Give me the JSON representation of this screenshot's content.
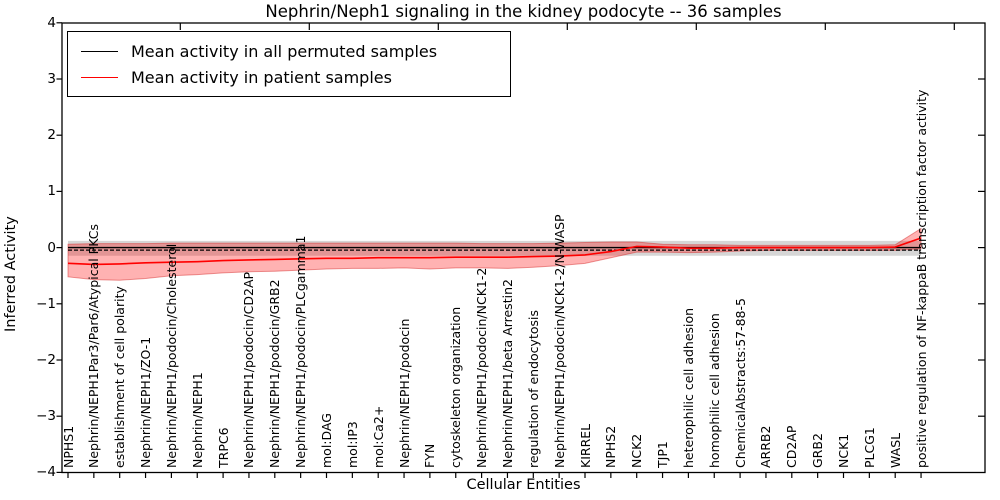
{
  "figure": {
    "title": "Nephrin/Neph1 signaling in the kidney podocyte -- 36 samples",
    "xlabel": "Cellular Entities",
    "ylabel": "Inferred Activity"
  },
  "legend": {
    "entries": [
      {
        "label": "Mean activity in all permuted samples",
        "color": "#000000"
      },
      {
        "label": "Mean activity in patient samples",
        "color": "#ff0000"
      }
    ]
  },
  "chart_data": {
    "type": "line",
    "title": "Nephrin/Neph1 signaling in the kidney podocyte -- 36 samples",
    "xlabel": "Cellular Entities",
    "ylabel": "Inferred Activity",
    "ylim": [
      -4,
      4
    ],
    "yticks": [
      4,
      3,
      2,
      1,
      0,
      -1,
      -2,
      -3,
      -4
    ],
    "ytick_labels": [
      "4",
      "3",
      "2",
      "1",
      "0",
      "−1",
      "−2",
      "−3",
      "−4"
    ],
    "grid": false,
    "legend_position": "upper left",
    "categories": [
      "NPHS1",
      "Nephrin/NEPH1Par3/Par6/Atypical PKCs",
      "establishment of cell polarity",
      "Nephrin/NEPH1/ZO-1",
      "Nephrin/NEPH1/podocin/Cholesterol",
      "Nephrin/NEPH1",
      "TRPC6",
      "Nephrin/NEPH1/podocin/CD2AP",
      "Nephrin/NEPH1/podocin/GRB2",
      "Nephrin/NEPH1/podocin/PLCgamma1",
      "mol:DAG",
      "mol:IP3",
      "mol:Ca2+",
      "Nephrin/NEPH1/podocin",
      "FYN",
      "cytoskeleton organization",
      "Nephrin/NEPH1/podocin/NCK1-2",
      "Nephrin/NEPH1/beta Arrestin2",
      "regulation of endocytosis",
      "Nephrin/NEPH1/podocin/NCK1-2/N-WASP",
      "KIRREL",
      "NPHS2",
      "NCK2",
      "TJP1",
      "heterophilic cell adhesion",
      "homophilic cell adhesion",
      "ChemicalAbstracts:57-88-5",
      "ARRB2",
      "CD2AP",
      "GRB2",
      "NCK1",
      "PLCG1",
      "WASL",
      "positive regulation of NF-kappaB transcription factor activity"
    ],
    "series": [
      {
        "name": "Mean activity in all permuted samples",
        "color": "#000000",
        "style": "solid",
        "values": [
          0,
          0,
          0,
          0,
          0,
          0,
          0,
          0,
          0,
          0,
          0,
          0,
          0,
          0,
          0,
          0,
          0,
          0,
          0,
          0,
          0,
          0,
          0,
          0,
          0,
          0,
          0,
          0,
          0,
          0,
          0,
          0,
          0,
          0
        ]
      },
      {
        "name": "Mean activity in patient samples",
        "color": "#ff0000",
        "style": "solid",
        "values": [
          -0.28,
          -0.3,
          -0.29,
          -0.27,
          -0.26,
          -0.25,
          -0.23,
          -0.22,
          -0.21,
          -0.2,
          -0.19,
          -0.19,
          -0.18,
          -0.18,
          -0.18,
          -0.17,
          -0.17,
          -0.17,
          -0.16,
          -0.15,
          -0.13,
          -0.07,
          0.02,
          0.01,
          -0.01,
          -0.01,
          0,
          0,
          0,
          0,
          0,
          0,
          0.01,
          0.17
        ]
      }
    ],
    "bands": [
      {
        "name": "permuted-range",
        "color": "rgba(120,120,120,0.30)",
        "edge": "none",
        "upper": 0.12,
        "lower": -0.145
      },
      {
        "name": "patient-range",
        "color": "rgba(255,0,0,0.30)",
        "edge": "rgba(210,30,30,0.45)",
        "upper": [
          0.06,
          0.07,
          0.07,
          0.07,
          0.08,
          0.08,
          0.08,
          0.08,
          0.08,
          0.08,
          0.08,
          0.08,
          0.08,
          0.08,
          0.08,
          0.08,
          0.07,
          0.07,
          0.07,
          0.08,
          0.09,
          0.1,
          0.1,
          0.06,
          0.05,
          0.05,
          0.04,
          0.04,
          0.04,
          0.04,
          0.04,
          0.04,
          0.05,
          0.34
        ],
        "lower": [
          -0.52,
          -0.57,
          -0.58,
          -0.55,
          -0.5,
          -0.48,
          -0.45,
          -0.43,
          -0.42,
          -0.4,
          -0.38,
          -0.37,
          -0.37,
          -0.36,
          -0.38,
          -0.36,
          -0.36,
          -0.37,
          -0.35,
          -0.32,
          -0.28,
          -0.18,
          -0.08,
          -0.08,
          -0.09,
          -0.08,
          -0.06,
          -0.05,
          -0.05,
          -0.05,
          -0.05,
          -0.05,
          -0.05,
          -0.02
        ]
      }
    ],
    "reference_line": {
      "y": -0.045,
      "style": "dashed",
      "color": "#000000"
    }
  }
}
